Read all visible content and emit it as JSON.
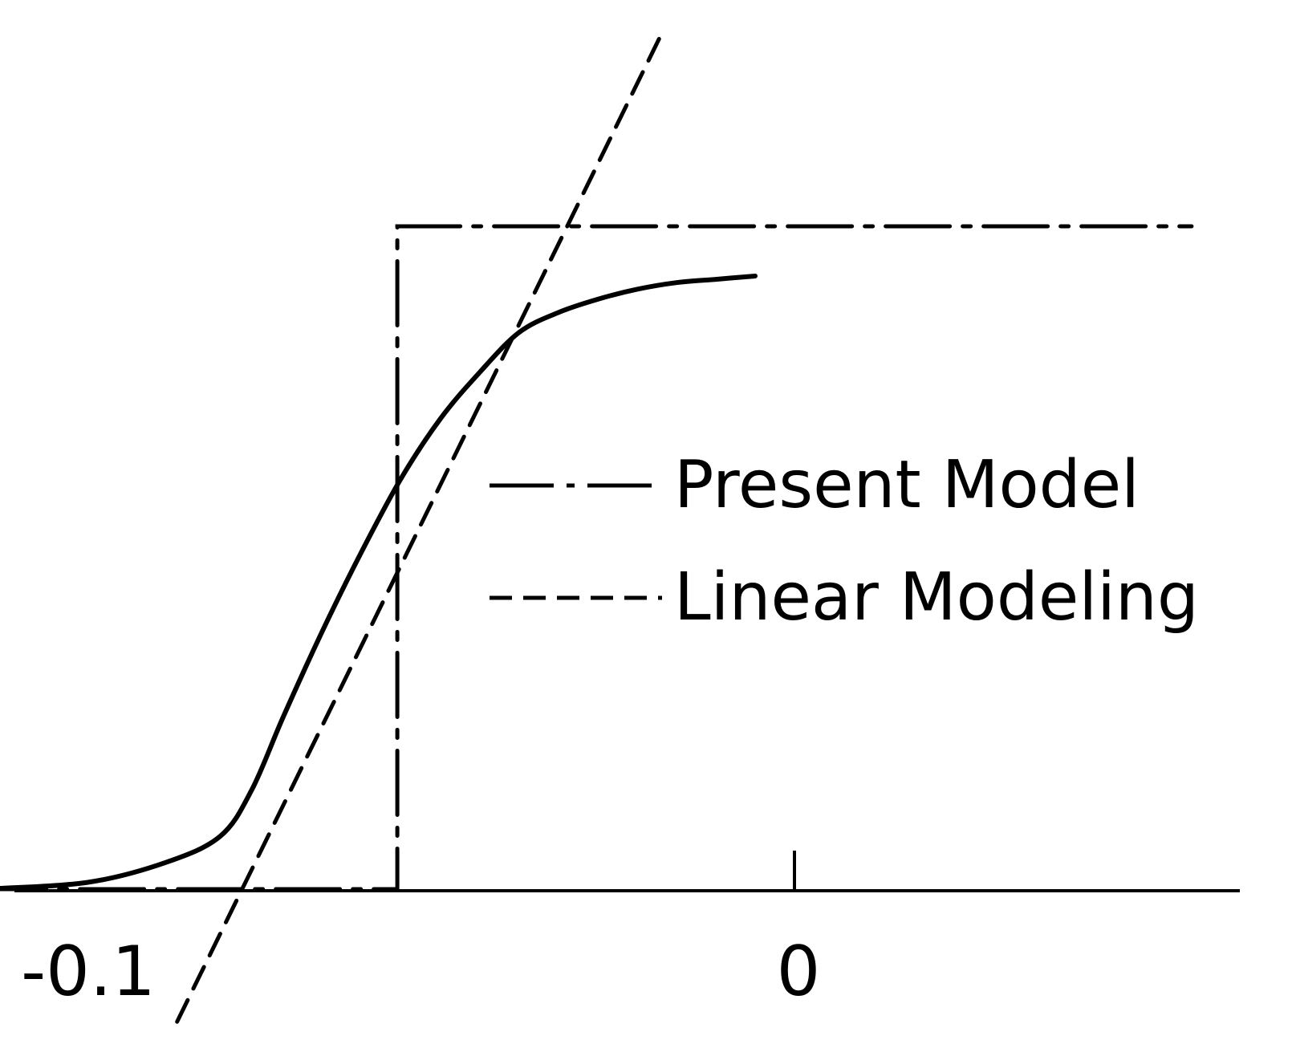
{
  "chart_data": {
    "type": "line",
    "xlim": [
      -0.1,
      0.0
    ],
    "ylim": [
      0,
      1
    ],
    "x_ticks": [
      {
        "value": -0.1,
        "label": "-0.1"
      },
      {
        "value": 0,
        "label": "0"
      }
    ],
    "grid": false,
    "legend_position": "right",
    "series": [
      {
        "name": "",
        "style": "solid",
        "x": [
          -0.1033,
          -0.09,
          -0.08,
          -0.073,
          -0.069,
          -0.065,
          -0.06,
          -0.055,
          -0.05,
          -0.045,
          -0.04,
          -0.035,
          -0.03,
          -0.025,
          -0.02,
          -0.015,
          -0.01,
          -0.005
        ],
        "y": [
          0.0,
          0.01,
          0.04,
          0.08,
          0.15,
          0.26,
          0.39,
          0.51,
          0.62,
          0.71,
          0.78,
          0.84,
          0.87,
          0.89,
          0.905,
          0.915,
          0.92,
          0.925
        ]
      },
      {
        "name": "Present Model",
        "style": "dash-dot",
        "x": [
          -0.1033,
          -0.0505,
          -0.0505,
          0.0505
        ],
        "y": [
          0.0,
          0.0,
          1.0,
          1.0
        ]
      },
      {
        "name": "Linear Modeling",
        "style": "dashed",
        "x": [
          -0.0785,
          -0.0165
        ],
        "y": [
          -0.2,
          1.3
        ]
      }
    ]
  },
  "legend": {
    "entries": [
      "Present Model",
      "Linear Modeling"
    ]
  }
}
